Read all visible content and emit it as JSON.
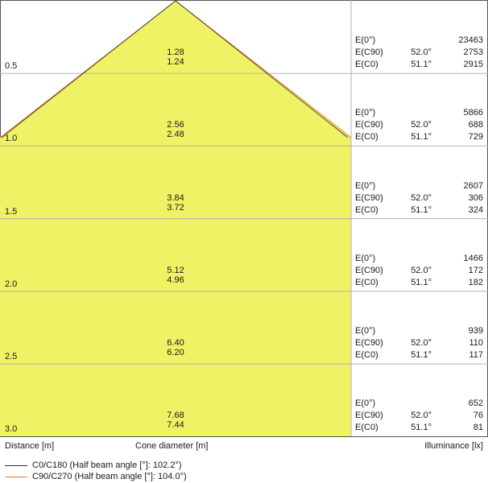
{
  "rows": [
    {
      "distance": "0.5",
      "cone_c90": "1.28",
      "cone_c0": "1.24",
      "illum": [
        {
          "key": "E(0°)",
          "angle": "",
          "value": "23463"
        },
        {
          "key": "E(C90)",
          "angle": "52.0°",
          "value": "2753"
        },
        {
          "key": "E(C0)",
          "angle": "51.1°",
          "value": "2915"
        }
      ]
    },
    {
      "distance": "1.0",
      "cone_c90": "2.56",
      "cone_c0": "2.48",
      "illum": [
        {
          "key": "E(0°)",
          "angle": "",
          "value": "5866"
        },
        {
          "key": "E(C90)",
          "angle": "52.0°",
          "value": "688"
        },
        {
          "key": "E(C0)",
          "angle": "51.1°",
          "value": "729"
        }
      ]
    },
    {
      "distance": "1.5",
      "cone_c90": "3.84",
      "cone_c0": "3.72",
      "illum": [
        {
          "key": "E(0°)",
          "angle": "",
          "value": "2607"
        },
        {
          "key": "E(C90)",
          "angle": "52.0°",
          "value": "306"
        },
        {
          "key": "E(C0)",
          "angle": "51.1°",
          "value": "324"
        }
      ]
    },
    {
      "distance": "2.0",
      "cone_c90": "5.12",
      "cone_c0": "4.96",
      "illum": [
        {
          "key": "E(0°)",
          "angle": "",
          "value": "1466"
        },
        {
          "key": "E(C90)",
          "angle": "52.0°",
          "value": "172"
        },
        {
          "key": "E(C0)",
          "angle": "51.1°",
          "value": "182"
        }
      ]
    },
    {
      "distance": "2.5",
      "cone_c90": "6.40",
      "cone_c0": "6.20",
      "illum": [
        {
          "key": "E(0°)",
          "angle": "",
          "value": "939"
        },
        {
          "key": "E(C90)",
          "angle": "52.0°",
          "value": "110"
        },
        {
          "key": "E(C0)",
          "angle": "51.1°",
          "value": "117"
        }
      ]
    },
    {
      "distance": "3.0",
      "cone_c90": "7.68",
      "cone_c0": "7.44",
      "illum": [
        {
          "key": "E(0°)",
          "angle": "",
          "value": "652"
        },
        {
          "key": "E(C90)",
          "angle": "52.0°",
          "value": "76"
        },
        {
          "key": "E(C0)",
          "angle": "51.1°",
          "value": "81"
        }
      ]
    }
  ],
  "footer": {
    "distance_label": "Distance [m]",
    "cone_label": "Cone diameter [m]",
    "illuminance_label": "Illuminance [lx]"
  },
  "legend": [
    {
      "text": "C0/C180 (Half beam angle [°]: 102.2°)",
      "color": "#333333"
    },
    {
      "text": "C90/C270 (Half beam angle [°]: 104.0°)",
      "color": "#e87722"
    }
  ],
  "colors": {
    "cone_fill": "#eef264",
    "grid": "#b3b3b3",
    "frame": "#555555"
  }
}
